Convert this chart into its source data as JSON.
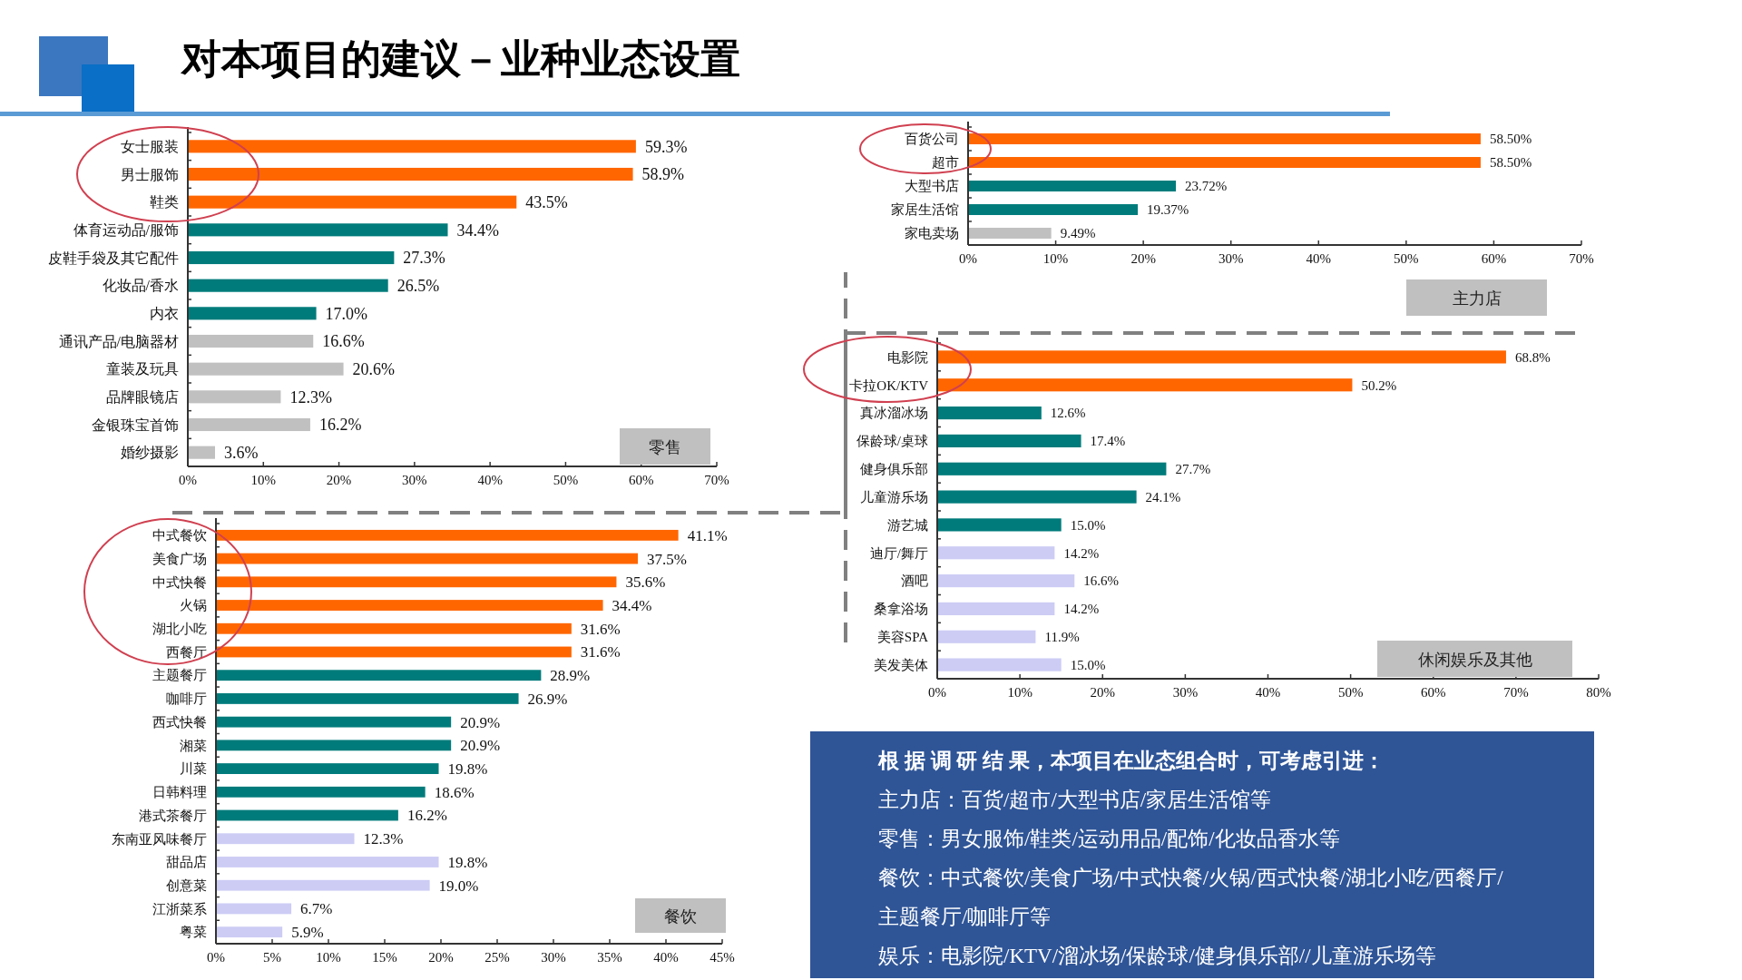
{
  "chart_data": [
    {
      "type": "bar",
      "orientation": "horizontal",
      "title": "对本项目的建议－业种业态设置",
      "subtitle": "零售",
      "categories": [
        "女士服装",
        "男士服饰",
        "鞋类",
        "体育运动品/服饰",
        "皮鞋手袋及其它配件",
        "化妆品/香水",
        "内衣",
        "通讯产品/电脑器材",
        "童装及玩具",
        "品牌眼镜店",
        "金银珠宝首饰",
        "婚纱摄影"
      ],
      "values": [
        59.3,
        58.9,
        43.5,
        34.4,
        27.3,
        26.5,
        17.0,
        16.6,
        20.6,
        12.3,
        16.2,
        3.6
      ],
      "value_labels": [
        "59.3%",
        "58.9%",
        "43.5%",
        "34.4%",
        "27.3%",
        "26.5%",
        "17.0%",
        "16.6%",
        "20.6%",
        "12.3%",
        "16.2%",
        "3.6%"
      ],
      "colors": [
        "#ff6600",
        "#ff6600",
        "#ff6600",
        "#007b7b",
        "#007b7b",
        "#007b7b",
        "#007b7b",
        "#c0c0c0",
        "#c0c0c0",
        "#c0c0c0",
        "#c0c0c0",
        "#c0c0c0"
      ],
      "xlim": [
        0,
        70
      ],
      "xticks": [
        {
          "value": 0,
          "label": "0%"
        },
        {
          "value": 10,
          "label": "10%"
        },
        {
          "value": 20,
          "label": "20%"
        },
        {
          "value": 30,
          "label": "30%"
        },
        {
          "value": 40,
          "label": "40%"
        },
        {
          "value": 50,
          "label": "50%"
        },
        {
          "value": 60,
          "label": "60%"
        },
        {
          "value": 70,
          "label": "70%"
        }
      ]
    },
    {
      "type": "bar",
      "orientation": "horizontal",
      "subtitle": "主力店",
      "categories": [
        "百货公司",
        "超市",
        "大型书店",
        "家居生活馆",
        "家电卖场"
      ],
      "values": [
        58.5,
        58.5,
        23.72,
        19.37,
        9.49
      ],
      "value_labels": [
        "58.50%",
        "58.50%",
        "23.72%",
        "19.37%",
        "9.49%"
      ],
      "colors": [
        "#ff6600",
        "#ff6600",
        "#007b7b",
        "#007b7b",
        "#c0c0c0"
      ],
      "xlim": [
        0,
        70
      ],
      "xticks": [
        {
          "value": 0,
          "label": "0%"
        },
        {
          "value": 10,
          "label": "10%"
        },
        {
          "value": 20,
          "label": "20%"
        },
        {
          "value": 30,
          "label": "30%"
        },
        {
          "value": 40,
          "label": "40%"
        },
        {
          "value": 50,
          "label": "50%"
        },
        {
          "value": 60,
          "label": "60%"
        },
        {
          "value": 70,
          "label": "70%"
        }
      ]
    },
    {
      "type": "bar",
      "orientation": "horizontal",
      "subtitle": "休闲娱乐及其他",
      "categories": [
        "电影院",
        "卡拉OK/KTV",
        "真冰溜冰场",
        "保龄球/桌球",
        "健身俱乐部",
        "儿童游乐场",
        "游艺城",
        "迪厅/舞厅",
        "酒吧",
        "桑拿浴场",
        "美容SPA",
        "美发美体"
      ],
      "values": [
        68.8,
        50.2,
        12.6,
        17.4,
        27.7,
        24.1,
        15.0,
        14.2,
        16.6,
        14.2,
        11.9,
        15.0
      ],
      "value_labels": [
        "68.8%",
        "50.2%",
        "12.6%",
        "17.4%",
        "27.7%",
        "24.1%",
        "15.0%",
        "14.2%",
        "16.6%",
        "14.2%",
        "11.9%",
        "15.0%"
      ],
      "colors": [
        "#ff6600",
        "#ff6600",
        "#007b7b",
        "#007b7b",
        "#007b7b",
        "#007b7b",
        "#007b7b",
        "#ccccf5",
        "#ccccf5",
        "#ccccf5",
        "#ccccf5",
        "#ccccf5"
      ],
      "xlim": [
        0,
        80
      ],
      "xticks": [
        {
          "value": 0,
          "label": "0%"
        },
        {
          "value": 10,
          "label": "10%"
        },
        {
          "value": 20,
          "label": "20%"
        },
        {
          "value": 30,
          "label": "30%"
        },
        {
          "value": 40,
          "label": "40%"
        },
        {
          "value": 50,
          "label": "50%"
        },
        {
          "value": 60,
          "label": "60%"
        },
        {
          "value": 70,
          "label": "70%"
        },
        {
          "value": 80,
          "label": "80%"
        }
      ]
    },
    {
      "type": "bar",
      "orientation": "horizontal",
      "subtitle": "餐饮",
      "categories": [
        "中式餐饮",
        "美食广场",
        "中式快餐",
        "火锅",
        "湖北小吃",
        "西餐厅",
        "主题餐厅",
        "咖啡厅",
        "西式快餐",
        "湘菜",
        "川菜",
        "日韩料理",
        "港式茶餐厅",
        "东南亚风味餐厅",
        "甜品店",
        "创意菜",
        "江浙菜系",
        "粤菜"
      ],
      "values": [
        41.1,
        37.5,
        35.6,
        34.4,
        31.6,
        31.6,
        28.9,
        26.9,
        20.9,
        20.9,
        19.8,
        18.6,
        16.2,
        12.3,
        19.8,
        19.0,
        6.7,
        5.9
      ],
      "value_labels": [
        "41.1%",
        "37.5%",
        "35.6%",
        "34.4%",
        "31.6%",
        "31.6%",
        "28.9%",
        "26.9%",
        "20.9%",
        "20.9%",
        "19.8%",
        "18.6%",
        "16.2%",
        "12.3%",
        "19.8%",
        "19.0%",
        "6.7%",
        "5.9%"
      ],
      "colors": [
        "#ff6600",
        "#ff6600",
        "#ff6600",
        "#ff6600",
        "#ff6600",
        "#ff6600",
        "#007b7b",
        "#007b7b",
        "#007b7b",
        "#007b7b",
        "#007b7b",
        "#007b7b",
        "#007b7b",
        "#ccccf5",
        "#ccccf5",
        "#ccccf5",
        "#ccccf5",
        "#ccccf5"
      ],
      "xlim": [
        0,
        45
      ],
      "xticks": [
        {
          "value": 0,
          "label": "0%"
        },
        {
          "value": 5,
          "label": "5%"
        },
        {
          "value": 10,
          "label": "10%"
        },
        {
          "value": 15,
          "label": "15%"
        },
        {
          "value": 20,
          "label": "20%"
        },
        {
          "value": 25,
          "label": "25%"
        },
        {
          "value": 30,
          "label": "30%"
        },
        {
          "value": 35,
          "label": "35%"
        },
        {
          "value": 40,
          "label": "40%"
        },
        {
          "value": 45,
          "label": "45%"
        }
      ]
    },
    {
      "type": "other",
      "annotations": [
        "根 据 调 研 结 果，本项目在业态组合时，可考虑引进：",
        "主力店：百货/超市/大型书店/家居生活馆等",
        "零售：男女服饰/鞋类/运动用品/配饰/化妆品香水等",
        "餐饮：中式餐饮/美食广场/中式快餐/火锅/西式快餐/湖北小吃/西餐厅/",
        "主题餐厅/咖啡厅等",
        "娱乐：电影院/KTV/溜冰场/保龄球/健身俱乐部//儿童游乐场等"
      ]
    }
  ]
}
